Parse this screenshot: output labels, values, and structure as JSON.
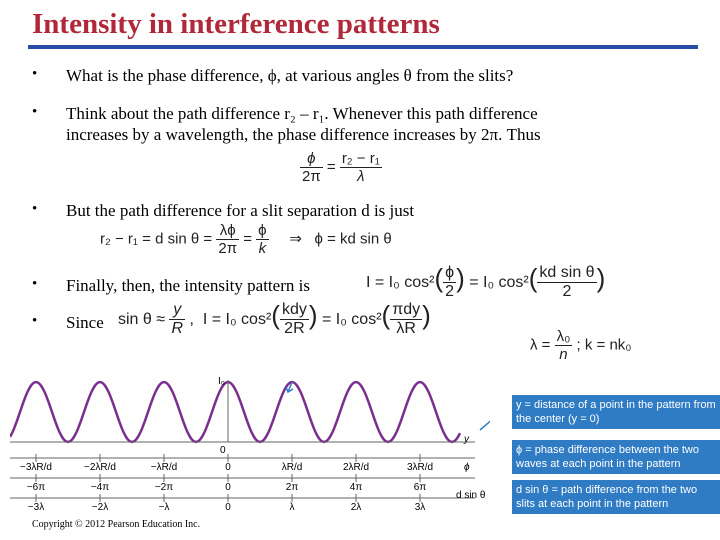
{
  "slide": {
    "title": "Intensity in interference patterns",
    "bullet_char": "•",
    "bullet1": "What is the phase difference, ϕ, at various angles θ from the slits?",
    "bullet2_line1": "Think about the path difference r₂ – r₁.  Whenever this path difference",
    "bullet2_line2": "increases by a wavelength, the phase difference increases by 2π.  Thus",
    "bullet3": "But the path difference for a slit separation d is just",
    "bullet4": "Finally, then, the intensity pattern is",
    "bullet5": "Since",
    "copyright": "Copyright © 2012 Pearson Education Inc."
  },
  "equations": {
    "eq1_num_left": "ϕ",
    "eq1_den_left": "2π",
    "eq1_eq": "=",
    "eq1_num_right": "r₂ − r₁",
    "eq1_den_right": "λ",
    "eq2_lhs": "r₂ − r₁ = d sin θ =",
    "eq2_num1": "λϕ",
    "eq2_den1": "2π",
    "eq2_mid": "=",
    "eq2_num2": "ϕ",
    "eq2_den2": "k",
    "eq2_arrow": "⇒",
    "eq2_result": "ϕ = kd sin θ",
    "eq3_lhs": "I = I₀ cos²",
    "eq3_num1": "ϕ",
    "eq3_den1": "2",
    "eq3_mid": "= I₀ cos²",
    "eq3_num2": "kd sin θ",
    "eq3_den2": "2",
    "eq4_lhs": "sin θ ≈",
    "eq4_num": "y",
    "eq4_den": "R",
    "eq4_comma": ",",
    "eq4_I": "I = I₀ cos²",
    "eq4_num2": "kdy",
    "eq4_den2": "2R",
    "eq4_mid": "= I₀ cos²",
    "eq4_num3": "πdy",
    "eq4_den3": "λR",
    "eq5_lhs": "λ =",
    "eq5_num": "λ₀",
    "eq5_den": "n",
    "eq5_rhs": "; k = nk₀"
  },
  "figure": {
    "peak_label": "I₀",
    "zero_label": "0",
    "y_ticks": [
      "−3λR/d",
      "−2λR/d",
      "−λR/d",
      "0",
      "λR/d",
      "2λR/d",
      "3λR/d"
    ],
    "phi_ticks": [
      "−6π",
      "−4π",
      "−2π",
      "0",
      "2π",
      "4π",
      "6π"
    ],
    "path_ticks": [
      "−3λ",
      "−2λ",
      "−λ",
      "0",
      "λ",
      "2λ",
      "3λ"
    ],
    "axis_y": "y",
    "axis_phi": "ϕ",
    "axis_d": "d sin θ",
    "callout_y": "y = distance of a point in the pattern from the center (y = 0)",
    "callout_phi": "ϕ = phase difference between the two waves at each point in the pattern",
    "callout_d": "d sin θ = path difference from the two slits at each point in the pattern",
    "wave_color": "#7b2d8e",
    "callout_color": "#2f7bc4"
  }
}
